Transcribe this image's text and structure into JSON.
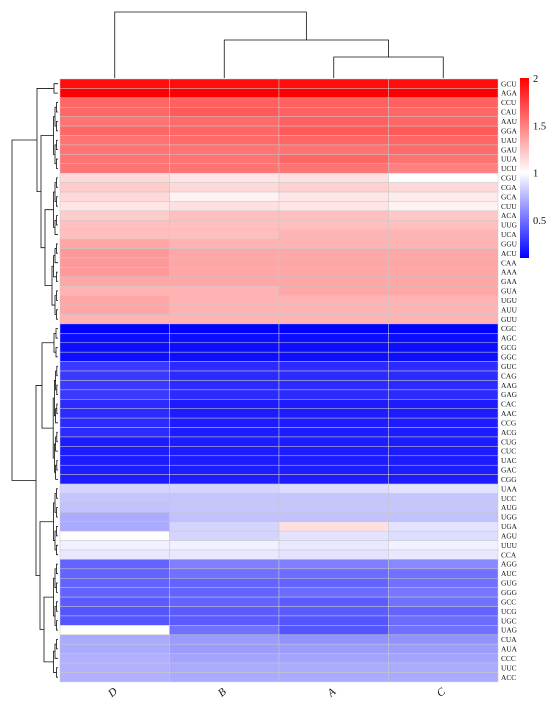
{
  "chart_data": {
    "type": "heatmap",
    "columns": [
      "D",
      "B",
      "A",
      "C"
    ],
    "rows": [
      {
        "codon": "GCU",
        "values": [
          1.95,
          1.95,
          1.95,
          1.95
        ]
      },
      {
        "codon": "AGA",
        "values": [
          2.0,
          2.0,
          2.0,
          2.0
        ]
      },
      {
        "codon": "CCU",
        "values": [
          1.6,
          1.62,
          1.62,
          1.62
        ]
      },
      {
        "codon": "CAU",
        "values": [
          1.6,
          1.65,
          1.62,
          1.6
        ]
      },
      {
        "codon": "AAU",
        "values": [
          1.55,
          1.58,
          1.62,
          1.6
        ]
      },
      {
        "codon": "GGA",
        "values": [
          1.6,
          1.6,
          1.65,
          1.65
        ]
      },
      {
        "codon": "UAU",
        "values": [
          1.55,
          1.58,
          1.6,
          1.6
        ]
      },
      {
        "codon": "GAU",
        "values": [
          1.55,
          1.55,
          1.55,
          1.58
        ]
      },
      {
        "codon": "UUA",
        "values": [
          1.55,
          1.55,
          1.6,
          1.55
        ]
      },
      {
        "codon": "UCU",
        "values": [
          1.55,
          1.55,
          1.55,
          1.5
        ]
      },
      {
        "codon": "CGU",
        "values": [
          1.15,
          1.1,
          1.12,
          1.0
        ]
      },
      {
        "codon": "CGA",
        "values": [
          1.2,
          1.15,
          1.18,
          1.15
        ]
      },
      {
        "codon": "GCA",
        "values": [
          1.15,
          1.05,
          1.1,
          1.08
        ]
      },
      {
        "codon": "CUU",
        "values": [
          1.1,
          1.12,
          1.1,
          1.05
        ]
      },
      {
        "codon": "ACA",
        "values": [
          1.2,
          1.25,
          1.25,
          1.22
        ]
      },
      {
        "codon": "UUG",
        "values": [
          1.25,
          1.25,
          1.25,
          1.25
        ]
      },
      {
        "codon": "UCA",
        "values": [
          1.25,
          1.25,
          1.3,
          1.3
        ]
      },
      {
        "codon": "GGU",
        "values": [
          1.35,
          1.3,
          1.3,
          1.3
        ]
      },
      {
        "codon": "ACU",
        "values": [
          1.4,
          1.35,
          1.35,
          1.35
        ]
      },
      {
        "codon": "CAA",
        "values": [
          1.4,
          1.35,
          1.35,
          1.35
        ]
      },
      {
        "codon": "AAA",
        "values": [
          1.4,
          1.35,
          1.35,
          1.35
        ]
      },
      {
        "codon": "GAA",
        "values": [
          1.35,
          1.35,
          1.35,
          1.35
        ]
      },
      {
        "codon": "GUA",
        "values": [
          1.3,
          1.3,
          1.35,
          1.35
        ]
      },
      {
        "codon": "UGU",
        "values": [
          1.35,
          1.3,
          1.3,
          1.3
        ]
      },
      {
        "codon": "AUU",
        "values": [
          1.35,
          1.3,
          1.3,
          1.3
        ]
      },
      {
        "codon": "GUU",
        "values": [
          1.3,
          1.3,
          1.3,
          1.3
        ]
      },
      {
        "codon": "CGC",
        "values": [
          0.1,
          0.1,
          0.1,
          0.1
        ]
      },
      {
        "codon": "AGC",
        "values": [
          0.15,
          0.15,
          0.15,
          0.15
        ]
      },
      {
        "codon": "GCG",
        "values": [
          0.15,
          0.15,
          0.15,
          0.15
        ]
      },
      {
        "codon": "GGC",
        "values": [
          0.15,
          0.15,
          0.15,
          0.15
        ]
      },
      {
        "codon": "GUC",
        "values": [
          0.3,
          0.25,
          0.25,
          0.25
        ]
      },
      {
        "codon": "CAG",
        "values": [
          0.3,
          0.25,
          0.25,
          0.25
        ]
      },
      {
        "codon": "AAG",
        "values": [
          0.3,
          0.25,
          0.25,
          0.25
        ]
      },
      {
        "codon": "GAG",
        "values": [
          0.3,
          0.25,
          0.25,
          0.25
        ]
      },
      {
        "codon": "CAC",
        "values": [
          0.25,
          0.2,
          0.2,
          0.2
        ]
      },
      {
        "codon": "AAC",
        "values": [
          0.25,
          0.2,
          0.2,
          0.2
        ]
      },
      {
        "codon": "CCG",
        "values": [
          0.25,
          0.2,
          0.2,
          0.2
        ]
      },
      {
        "codon": "ACG",
        "values": [
          0.25,
          0.2,
          0.2,
          0.2
        ]
      },
      {
        "codon": "CUG",
        "values": [
          0.2,
          0.2,
          0.2,
          0.2
        ]
      },
      {
        "codon": "CUC",
        "values": [
          0.2,
          0.2,
          0.2,
          0.2
        ]
      },
      {
        "codon": "UAC",
        "values": [
          0.2,
          0.2,
          0.2,
          0.2
        ]
      },
      {
        "codon": "GAC",
        "values": [
          0.2,
          0.2,
          0.2,
          0.2
        ]
      },
      {
        "codon": "CGG",
        "values": [
          0.2,
          0.2,
          0.2,
          0.2
        ]
      },
      {
        "codon": "UAA",
        "values": [
          0.85,
          0.85,
          0.88,
          0.9
        ]
      },
      {
        "codon": "UCC",
        "values": [
          0.8,
          0.8,
          0.8,
          0.8
        ]
      },
      {
        "codon": "AUG",
        "values": [
          0.78,
          0.8,
          0.8,
          0.8
        ]
      },
      {
        "codon": "UGG",
        "values": [
          0.7,
          0.78,
          0.78,
          0.78
        ]
      },
      {
        "codon": "UGA",
        "values": [
          0.7,
          0.85,
          1.12,
          0.9
        ]
      },
      {
        "codon": "AGU",
        "values": [
          1.0,
          0.85,
          0.9,
          0.88
        ]
      },
      {
        "codon": "UUU",
        "values": [
          0.95,
          0.95,
          0.92,
          0.95
        ]
      },
      {
        "codon": "CCA",
        "values": [
          0.92,
          0.92,
          0.9,
          0.92
        ]
      },
      {
        "codon": "AGG",
        "values": [
          0.45,
          0.55,
          0.55,
          0.58
        ]
      },
      {
        "codon": "AUC",
        "values": [
          0.45,
          0.5,
          0.48,
          0.5
        ]
      },
      {
        "codon": "GUG",
        "values": [
          0.45,
          0.45,
          0.45,
          0.5
        ]
      },
      {
        "codon": "GGG",
        "values": [
          0.45,
          0.45,
          0.48,
          0.52
        ]
      },
      {
        "codon": "GCC",
        "values": [
          0.42,
          0.45,
          0.42,
          0.5
        ]
      },
      {
        "codon": "UCG",
        "values": [
          0.4,
          0.42,
          0.42,
          0.45
        ]
      },
      {
        "codon": "UGC",
        "values": [
          0.4,
          0.42,
          0.4,
          0.48
        ]
      },
      {
        "codon": "UAG",
        "values": [
          1.0,
          0.5,
          0.4,
          0.5
        ]
      },
      {
        "codon": "CUA",
        "values": [
          0.7,
          0.65,
          0.62,
          0.62
        ]
      },
      {
        "codon": "AUA",
        "values": [
          0.7,
          0.65,
          0.65,
          0.65
        ]
      },
      {
        "codon": "CCC",
        "values": [
          0.72,
          0.68,
          0.68,
          0.68
        ]
      },
      {
        "codon": "UUC",
        "values": [
          0.72,
          0.7,
          0.7,
          0.7
        ]
      },
      {
        "codon": "ACC",
        "values": [
          0.72,
          0.7,
          0.7,
          0.7
        ]
      }
    ],
    "color_scale": {
      "min": 0.1,
      "mid": 1,
      "max": 2,
      "low_color": "#0000ff",
      "mid_color": "#ffffff",
      "high_color": "#ff0000",
      "ticks": [
        {
          "value": 2,
          "label": "2"
        },
        {
          "value": 1.5,
          "label": "1.5"
        },
        {
          "value": 1,
          "label": "1"
        },
        {
          "value": 0.5,
          "label": "0.5"
        }
      ]
    },
    "grid": true,
    "legend_placement": "right",
    "column_dendrogram": true,
    "row_dendrogram": true
  }
}
